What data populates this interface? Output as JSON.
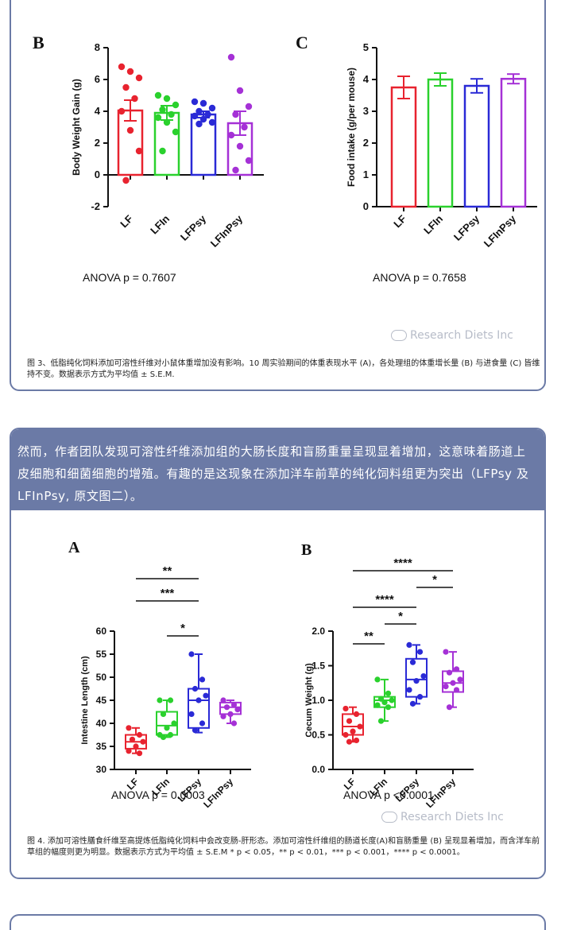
{
  "figure3": {
    "caption": "图 3、低脂纯化饲料添加可溶性纤维对小鼠体重增加没有影响。10 周实验期间的体重表现水平 (A)，各处理组的体重增长量 (B) 与进食量 (C) 皆维持不变。数据表示方式为平均值 ± S.E.M.",
    "watermark": "Research Diets Inc"
  },
  "banner": {
    "text": "然而，作者团队发现可溶性纤维添加组的大肠长度和盲肠重量呈现显着增加，这意味着肠道上皮细胞和细菌细胞的增殖。有趣的是这现象在添加洋车前草的纯化饲料组更为突出（LFPsy 及 LFInPsy, 原文图二）。"
  },
  "figure4": {
    "caption": "图 4. 添加可溶性膳食纤维至高提炼低脂纯化饲料中会改变肠-肝形态。添加可溶性纤维组的肠道长度(A)和盲肠重量 (B) 呈现显着增加，而含洋车前草组的幅度则更为明显。数据表示方式为平均值 ± S.E.M * p < 0.05，** p < 0.01，*** p < 0.001，**** p < 0.0001。",
    "watermark": "Research Diets Inc"
  },
  "colors": {
    "LF": "#e8232f",
    "LFIn": "#2ad12d",
    "LFPsy": "#2a2ad6",
    "LFInPsy": "#a531d6",
    "frame": "#6b7aa6"
  },
  "chart_data": [
    {
      "panel": "B",
      "type": "bar",
      "categories": [
        "LF",
        "LFIn",
        "LFPsy",
        "LFInPsy"
      ],
      "ylabel": "Body Weight Gain (g)",
      "ylim": [
        -2,
        8
      ],
      "yticks": [
        -2,
        0,
        2,
        4,
        6,
        8
      ],
      "means": [
        4.05,
        3.9,
        3.8,
        3.25
      ],
      "sem": [
        0.65,
        0.45,
        0.2,
        0.75
      ],
      "points": [
        [
          6.8,
          6.5,
          6.1,
          5.5,
          4.8,
          4.0,
          2.8,
          1.5,
          -0.35
        ],
        [
          5.0,
          4.8,
          4.4,
          4.1,
          3.8,
          3.6,
          3.3,
          2.7,
          1.5
        ],
        [
          4.6,
          4.5,
          4.2,
          4.0,
          3.8,
          3.7,
          3.5,
          3.3,
          3.2
        ],
        [
          7.4,
          5.3,
          4.3,
          3.8,
          3.0,
          2.5,
          1.8,
          0.9,
          0.3
        ]
      ],
      "annotation": "ANOVA p = 0.7607"
    },
    {
      "panel": "C",
      "type": "bar",
      "categories": [
        "LF",
        "LFIn",
        "LFPsy",
        "LFInPsy"
      ],
      "ylabel": "Food intake (g/per mouse)",
      "ylim": [
        0,
        5
      ],
      "yticks": [
        0,
        1,
        2,
        3,
        4,
        5
      ],
      "means": [
        3.75,
        4.0,
        3.8,
        4.02
      ],
      "sem": [
        0.35,
        0.2,
        0.22,
        0.15
      ],
      "annotation": "ANOVA p = 0.7658"
    },
    {
      "panel": "A",
      "type": "box",
      "categories": [
        "LF",
        "LFIn",
        "LFPsy",
        "LFInPsy"
      ],
      "ylabel": "Intestine Length (cm)",
      "ylim": [
        30,
        60
      ],
      "yticks": [
        30,
        35,
        40,
        45,
        50,
        55,
        60
      ],
      "box": [
        {
          "min": 33.5,
          "q1": 34.5,
          "median": 36,
          "q3": 37.5,
          "max": 39
        },
        {
          "min": 37,
          "q1": 37.5,
          "median": 39.5,
          "q3": 42.5,
          "max": 45
        },
        {
          "min": 38,
          "q1": 39,
          "median": 45,
          "q3": 47.5,
          "max": 55
        },
        {
          "min": 40,
          "q1": 42,
          "median": 43.5,
          "q3": 44.5,
          "max": 45
        }
      ],
      "points": [
        [
          39,
          37.5,
          36.5,
          36,
          35,
          34,
          33.5
        ],
        [
          45,
          45,
          42,
          40,
          39,
          37.5,
          37.5,
          37
        ],
        [
          55,
          49.5,
          47.5,
          46,
          45,
          42,
          40,
          38.5
        ],
        [
          45,
          44,
          43.5,
          43,
          42,
          41.5,
          40
        ]
      ],
      "significance": [
        {
          "from": 0,
          "to": 2,
          "label": "**"
        },
        {
          "from": 0,
          "to": 2,
          "label": "***"
        },
        {
          "from": 1,
          "to": 2,
          "label": "*"
        }
      ],
      "annotation": "ANOVA p = 0.0003"
    },
    {
      "panel": "B",
      "type": "box",
      "categories": [
        "LF",
        "LFIn",
        "LFPsy",
        "LFInPsy"
      ],
      "ylabel": "Cecum Weight (g)",
      "ylim": [
        0.0,
        2.0
      ],
      "yticks": [
        "0.0",
        "0.5",
        "1.0",
        "1.5",
        "2.0"
      ],
      "box": [
        {
          "min": 0.4,
          "q1": 0.5,
          "median": 0.62,
          "q3": 0.8,
          "max": 0.9
        },
        {
          "min": 0.7,
          "q1": 0.9,
          "median": 1.0,
          "q3": 1.05,
          "max": 1.3
        },
        {
          "min": 0.95,
          "q1": 1.05,
          "median": 1.3,
          "q3": 1.6,
          "max": 1.8
        },
        {
          "min": 0.9,
          "q1": 1.12,
          "median": 1.25,
          "q3": 1.42,
          "max": 1.7
        }
      ],
      "points": [
        [
          0.88,
          0.8,
          0.7,
          0.62,
          0.55,
          0.5,
          0.42,
          0.4
        ],
        [
          1.3,
          1.1,
          1.02,
          1.0,
          0.97,
          0.93,
          0.9,
          0.7
        ],
        [
          1.8,
          1.7,
          1.55,
          1.35,
          1.28,
          1.15,
          1.05,
          0.95
        ],
        [
          1.7,
          1.45,
          1.4,
          1.3,
          1.25,
          1.2,
          1.15,
          0.9
        ]
      ],
      "significance": [
        {
          "from": 0,
          "to": 3,
          "label": "****"
        },
        {
          "from": 2,
          "to": 3,
          "label": "*"
        },
        {
          "from": 0,
          "to": 2,
          "label": "****"
        },
        {
          "from": 1,
          "to": 2,
          "label": "*"
        },
        {
          "from": 0,
          "to": 1,
          "label": "**"
        }
      ],
      "annotation": "ANOVA p <0.0001"
    }
  ]
}
